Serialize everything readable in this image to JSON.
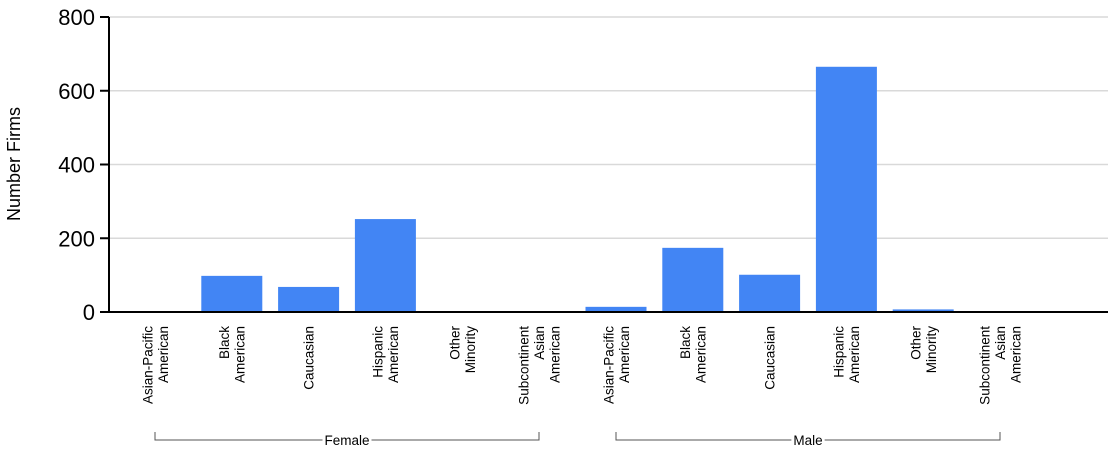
{
  "chart_data": {
    "type": "bar",
    "title": "",
    "xlabel": "",
    "ylabel": "Number Firms",
    "ylim": [
      0,
      800
    ],
    "yticks": [
      0,
      200,
      400,
      600,
      800
    ],
    "grid": true,
    "bar_color": "#4285f4",
    "groups": [
      {
        "name": "Female",
        "categories": [
          "Asian-Pacific American",
          "Black American",
          "Caucasian",
          "Hispanic American",
          "Other Minority",
          "Subcontinent Asian American"
        ],
        "category_lines": [
          [
            "Asian-Pacific",
            "American"
          ],
          [
            "Black",
            "American"
          ],
          [
            "Caucasian"
          ],
          [
            "Hispanic",
            "American"
          ],
          [
            "Other",
            "Minority"
          ],
          [
            "Subcontinent",
            "Asian",
            "American"
          ]
        ],
        "values": [
          2,
          98,
          68,
          252,
          2,
          1
        ]
      },
      {
        "name": "Male",
        "categories": [
          "Asian-Pacific American",
          "Black American",
          "Caucasian",
          "Hispanic American",
          "Other Minority",
          "Subcontinent Asian American"
        ],
        "category_lines": [
          [
            "Asian-Pacific",
            "American"
          ],
          [
            "Black",
            "American"
          ],
          [
            "Caucasian"
          ],
          [
            "Hispanic",
            "American"
          ],
          [
            "Other",
            "Minority"
          ],
          [
            "Subcontinent",
            "Asian",
            "American"
          ]
        ],
        "values": [
          14,
          174,
          101,
          665,
          7,
          2
        ]
      }
    ]
  }
}
